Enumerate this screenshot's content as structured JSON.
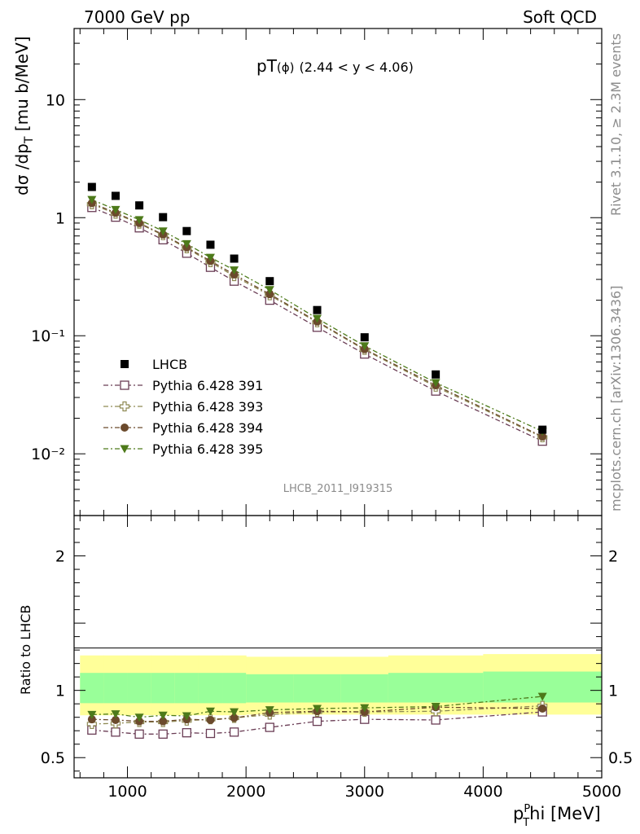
{
  "header": {
    "left": "7000 GeV pp",
    "right": "Soft QCD"
  },
  "side_labels": {
    "rivet": "Rivet 3.1.10, ≥ 2.3M events",
    "mcplots": "mcplots.cern.ch [arXiv:1306.3436]"
  },
  "chart_data": {
    "type": "scatter",
    "title": "pT(ϕ) (2.44 < y < 4.06)",
    "title_main": "pT",
    "title_phi": "(ϕ)",
    "title_range": "(2.44 < y < 4.06)",
    "analysis_id": "LHCB_2011_I919315",
    "xlabel": "p_T^Phi [MeV]",
    "xlabel_main": "p",
    "xlabel_sub": "T",
    "xlabel_sup": "P",
    "xlabel_rest": "hi [MeV]",
    "ylabel": "dσ /dp_T [mu b/MeV]",
    "ylabel_main": "dσ /dp",
    "ylabel_sub": "T",
    "ylabel_unit": " [mu b/MeV]",
    "ratio_ylabel": "Ratio to LHCB",
    "xlim": [
      550,
      5000
    ],
    "ylim": [
      0.003,
      40
    ],
    "yscale": "log",
    "ratio_ylim": [
      0.35,
      2.3
    ],
    "x_ticks": [
      "1000",
      "2000",
      "3000",
      "4000",
      "5000"
    ],
    "y_ticks": [
      "10",
      "1",
      "10⁻¹",
      "10⁻²"
    ],
    "ratio_ticks": [
      "2",
      "1",
      "0.5"
    ],
    "legend_position": "lower-left",
    "x": [
      700,
      900,
      1100,
      1300,
      1500,
      1700,
      1900,
      2200,
      2600,
      3000,
      3600,
      4500
    ],
    "data": {
      "name": "LHCB",
      "color": "#000000",
      "values": [
        1.82,
        1.53,
        1.27,
        1.01,
        0.77,
        0.59,
        0.45,
        0.29,
        0.165,
        0.097,
        0.047,
        0.016
      ]
    },
    "series": [
      {
        "name": "Pythia 6.428 391",
        "color": "#6a3d55",
        "marker": "open-square",
        "values": [
          1.22,
          1.01,
          0.82,
          0.65,
          0.5,
          0.38,
          0.29,
          0.2,
          0.118,
          0.07,
          0.034,
          0.0128
        ],
        "ratio": [
          0.705,
          0.69,
          0.675,
          0.675,
          0.685,
          0.68,
          0.69,
          0.725,
          0.77,
          0.785,
          0.78,
          0.84
        ]
      },
      {
        "name": "Pythia 6.428 393",
        "color": "#8f8a54",
        "marker": "open-cross",
        "values": [
          1.3,
          1.08,
          0.89,
          0.71,
          0.55,
          0.42,
          0.32,
          0.22,
          0.13,
          0.076,
          0.037,
          0.0138
        ],
        "ratio": [
          0.75,
          0.755,
          0.765,
          0.765,
          0.775,
          0.785,
          0.795,
          0.82,
          0.84,
          0.84,
          0.845,
          0.885
        ]
      },
      {
        "name": "Pythia 6.428 394",
        "color": "#6b4a2c",
        "marker": "filled-circle",
        "values": [
          1.33,
          1.1,
          0.9,
          0.72,
          0.56,
          0.43,
          0.33,
          0.225,
          0.132,
          0.077,
          0.038,
          0.014
        ],
        "ratio": [
          0.785,
          0.78,
          0.77,
          0.77,
          0.785,
          0.78,
          0.795,
          0.835,
          0.845,
          0.84,
          0.875,
          0.865
        ]
      },
      {
        "name": "Pythia 6.428 395",
        "color": "#4d7a1a",
        "marker": "filled-triangle-down",
        "values": [
          1.42,
          1.17,
          0.96,
          0.77,
          0.6,
          0.46,
          0.36,
          0.245,
          0.14,
          0.082,
          0.04,
          0.0155
        ],
        "ratio": [
          0.82,
          0.825,
          0.8,
          0.815,
          0.81,
          0.845,
          0.84,
          0.855,
          0.865,
          0.87,
          0.88,
          0.955
        ]
      }
    ],
    "ratio_bands": {
      "bin_edges": [
        600,
        800,
        1000,
        1200,
        1400,
        1600,
        1800,
        2000,
        2400,
        2800,
        3200,
        4000,
        5000
      ],
      "yellow_low": [
        0.815,
        0.815,
        0.815,
        0.815,
        0.815,
        0.815,
        0.815,
        0.82,
        0.82,
        0.82,
        0.82,
        0.82
      ],
      "yellow_high": [
        1.26,
        1.26,
        1.26,
        1.26,
        1.26,
        1.26,
        1.26,
        1.25,
        1.25,
        1.25,
        1.26,
        1.27
      ],
      "green_low": [
        0.905,
        0.905,
        0.905,
        0.905,
        0.905,
        0.905,
        0.905,
        0.91,
        0.91,
        0.91,
        0.91,
        0.91
      ],
      "green_high": [
        1.13,
        1.13,
        1.13,
        1.13,
        1.13,
        1.13,
        1.13,
        1.12,
        1.12,
        1.12,
        1.13,
        1.14
      ]
    }
  }
}
